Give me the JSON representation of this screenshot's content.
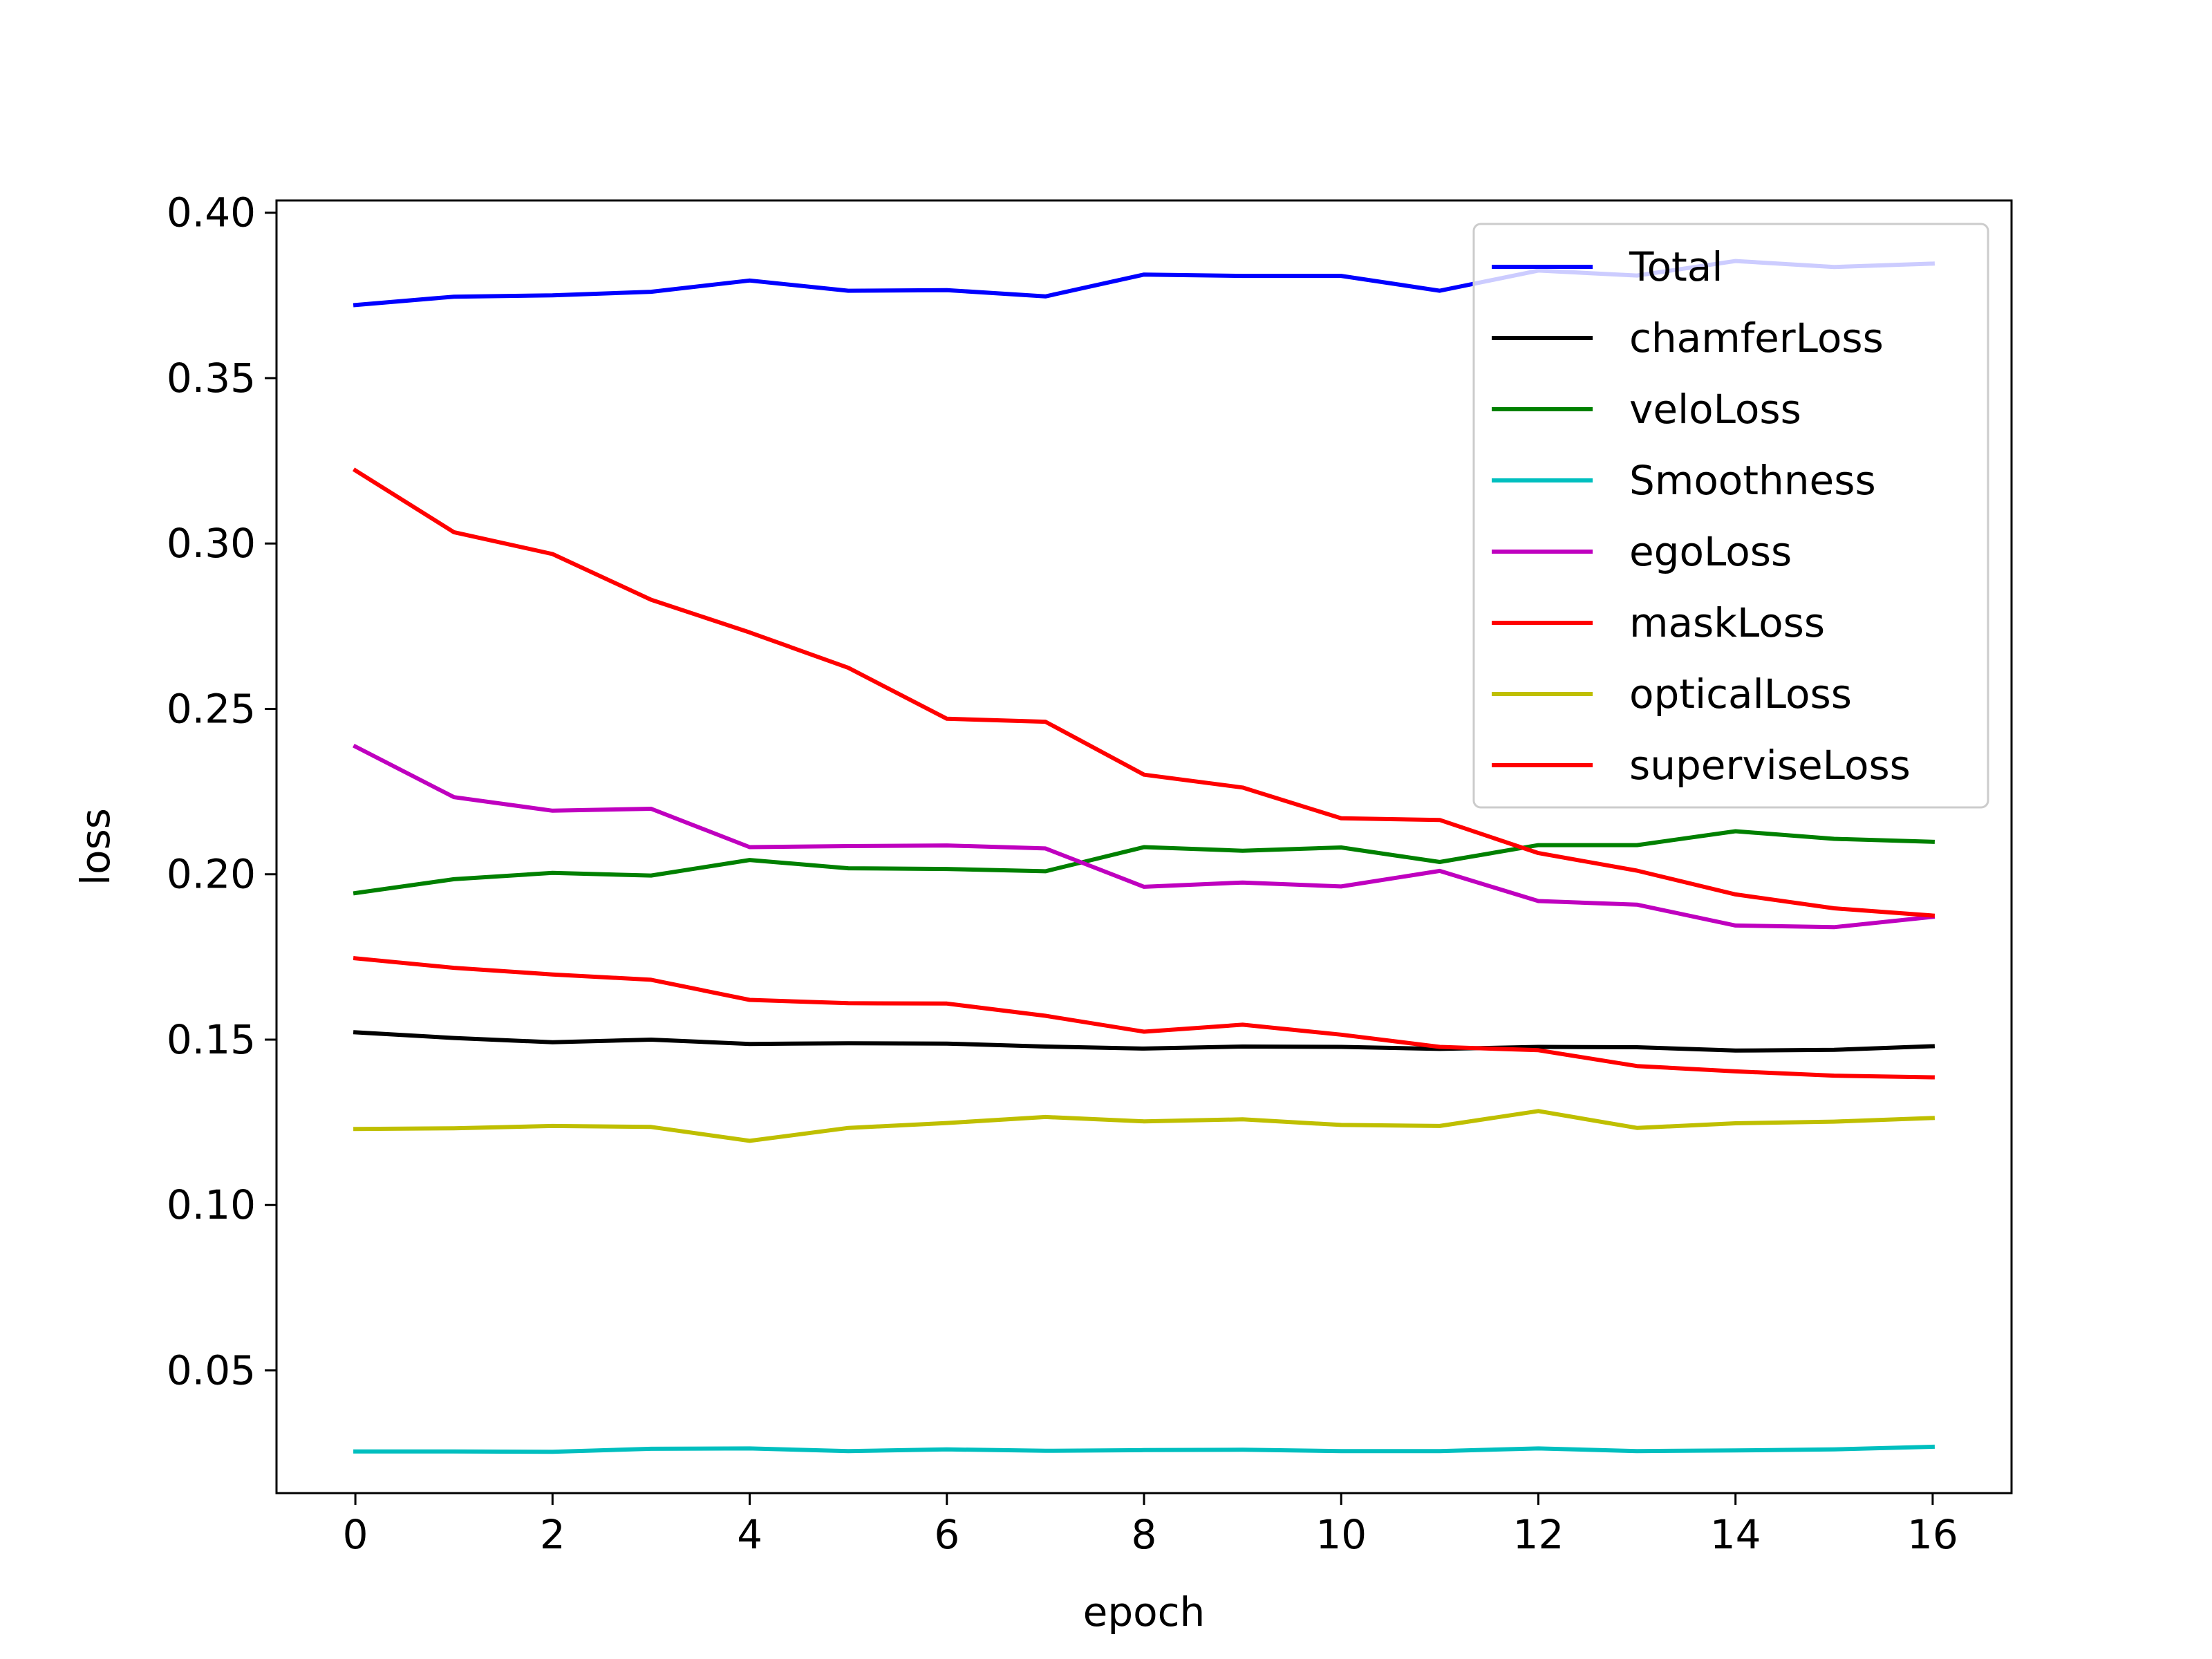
{
  "chart_data": {
    "type": "line",
    "title": "",
    "xlabel": "epoch",
    "ylabel": "loss",
    "x": [
      0,
      1,
      2,
      3,
      4,
      5,
      6,
      7,
      8,
      9,
      10,
      11,
      12,
      13,
      14,
      15,
      16
    ],
    "xlim": [
      -0.8,
      16.8
    ],
    "ylim": [
      0.0129,
      0.4037
    ],
    "xticks": [
      0,
      2,
      4,
      6,
      8,
      10,
      12,
      14,
      16
    ],
    "xtick_labels": [
      "0",
      "2",
      "4",
      "6",
      "8",
      "10",
      "12",
      "14",
      "16"
    ],
    "yticks": [
      0.05,
      0.1,
      0.15,
      0.2,
      0.25,
      0.3,
      0.35,
      0.4
    ],
    "ytick_labels": [
      "0.05",
      "0.10",
      "0.15",
      "0.20",
      "0.25",
      "0.30",
      "0.35",
      "0.40"
    ],
    "grid": false,
    "legend_position": "upper-right",
    "series": [
      {
        "name": "Total",
        "color": "#0000ff",
        "values": [
          0.3721,
          0.3746,
          0.375,
          0.3761,
          0.3795,
          0.3764,
          0.3766,
          0.3747,
          0.3813,
          0.3809,
          0.3809,
          0.3764,
          0.3825,
          0.381,
          0.3854,
          0.3836,
          0.3846
        ]
      },
      {
        "name": "chamferLoss",
        "color": "#000000",
        "values": [
          0.1522,
          0.1505,
          0.1492,
          0.15,
          0.1487,
          0.1489,
          0.1488,
          0.1479,
          0.1473,
          0.1479,
          0.1478,
          0.1472,
          0.1478,
          0.1477,
          0.1467,
          0.1469,
          0.148
        ]
      },
      {
        "name": "veloLoss",
        "color": "#008000",
        "values": [
          0.1943,
          0.1985,
          0.2004,
          0.1996,
          0.2043,
          0.2018,
          0.2016,
          0.2009,
          0.2082,
          0.2071,
          0.2081,
          0.2037,
          0.2088,
          0.2088,
          0.213,
          0.2107,
          0.2098
        ]
      },
      {
        "name": "Smoothness",
        "color": "#00bfbf",
        "values": [
          0.0255,
          0.0255,
          0.0254,
          0.0263,
          0.0264,
          0.0256,
          0.0261,
          0.0257,
          0.0259,
          0.026,
          0.0256,
          0.0256,
          0.0264,
          0.0256,
          0.0258,
          0.0261,
          0.0269
        ]
      },
      {
        "name": "egoLoss",
        "color": "#bf00bf",
        "values": [
          0.2386,
          0.2233,
          0.2192,
          0.2198,
          0.2082,
          0.2085,
          0.2087,
          0.2078,
          0.1962,
          0.1975,
          0.1963,
          0.201,
          0.1919,
          0.1908,
          0.1845,
          0.184,
          0.1871
        ]
      },
      {
        "name": "maskLoss",
        "color": "#ff0000",
        "values": [
          0.1746,
          0.1717,
          0.1697,
          0.1681,
          0.162,
          0.161,
          0.1609,
          0.1572,
          0.1524,
          0.1545,
          0.1515,
          0.1478,
          0.1468,
          0.142,
          0.1404,
          0.1391,
          0.1386
        ]
      },
      {
        "name": "opticalLoss",
        "color": "#bfbf00",
        "values": [
          0.123,
          0.1232,
          0.1239,
          0.1236,
          0.1194,
          0.1233,
          0.1248,
          0.1266,
          0.1253,
          0.1259,
          0.1242,
          0.1239,
          0.1284,
          0.1233,
          0.1247,
          0.1252,
          0.1263
        ]
      },
      {
        "name": "superviseLoss",
        "color": "#ff0000",
        "values": [
          0.3221,
          0.3034,
          0.2968,
          0.283,
          0.2731,
          0.2624,
          0.247,
          0.2461,
          0.2301,
          0.2262,
          0.2169,
          0.2164,
          0.2064,
          0.2011,
          0.1939,
          0.1897,
          0.1875
        ]
      }
    ]
  }
}
